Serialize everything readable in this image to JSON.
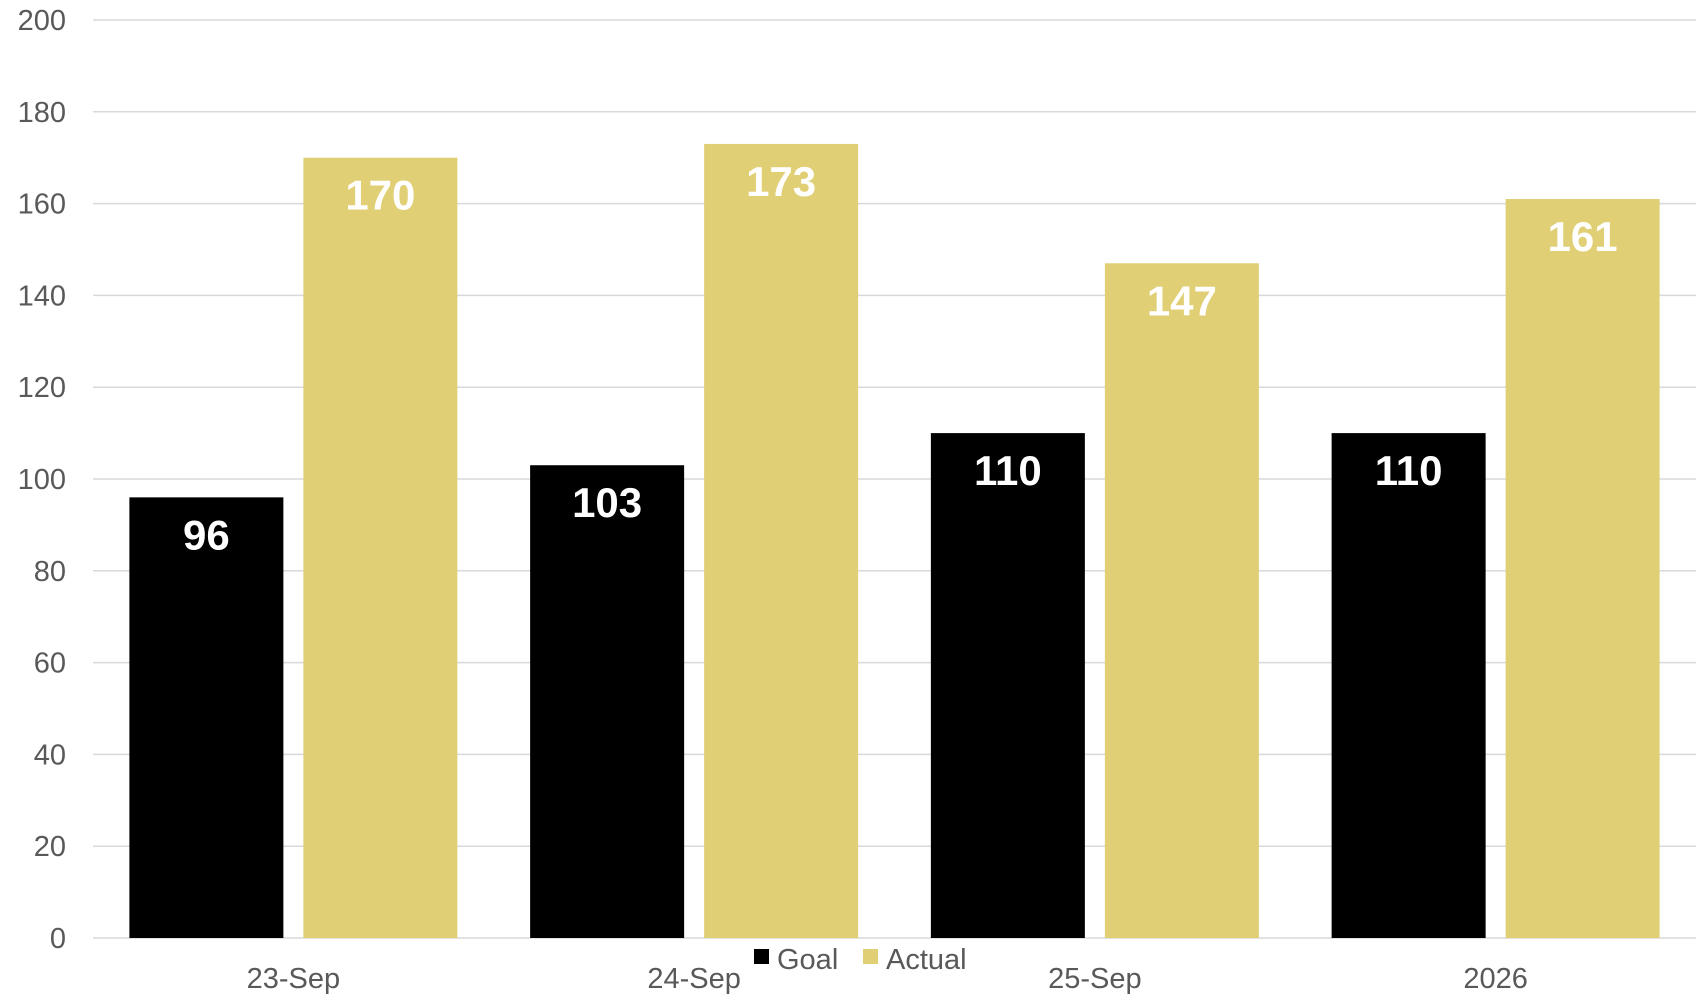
{
  "chart_data": {
    "type": "bar",
    "categories": [
      "23-Sep",
      "24-Sep",
      "25-Sep",
      "2026"
    ],
    "series": [
      {
        "name": "Goal",
        "values": [
          96,
          103,
          110,
          110
        ],
        "color": "#000000"
      },
      {
        "name": "Actual",
        "values": [
          170,
          173,
          147,
          161
        ],
        "color": "#E0CF75"
      }
    ],
    "title": "",
    "xlabel": "",
    "ylabel": "",
    "ylim": [
      0,
      200
    ],
    "yticks": [
      0,
      20,
      40,
      60,
      80,
      100,
      120,
      140,
      160,
      180,
      200
    ],
    "grid": true,
    "legend_position": "bottom",
    "data_labels": true,
    "gridline_color": "#D9D9D9",
    "label_color": "#FFFFFF",
    "axis_text_color": "#595959"
  }
}
